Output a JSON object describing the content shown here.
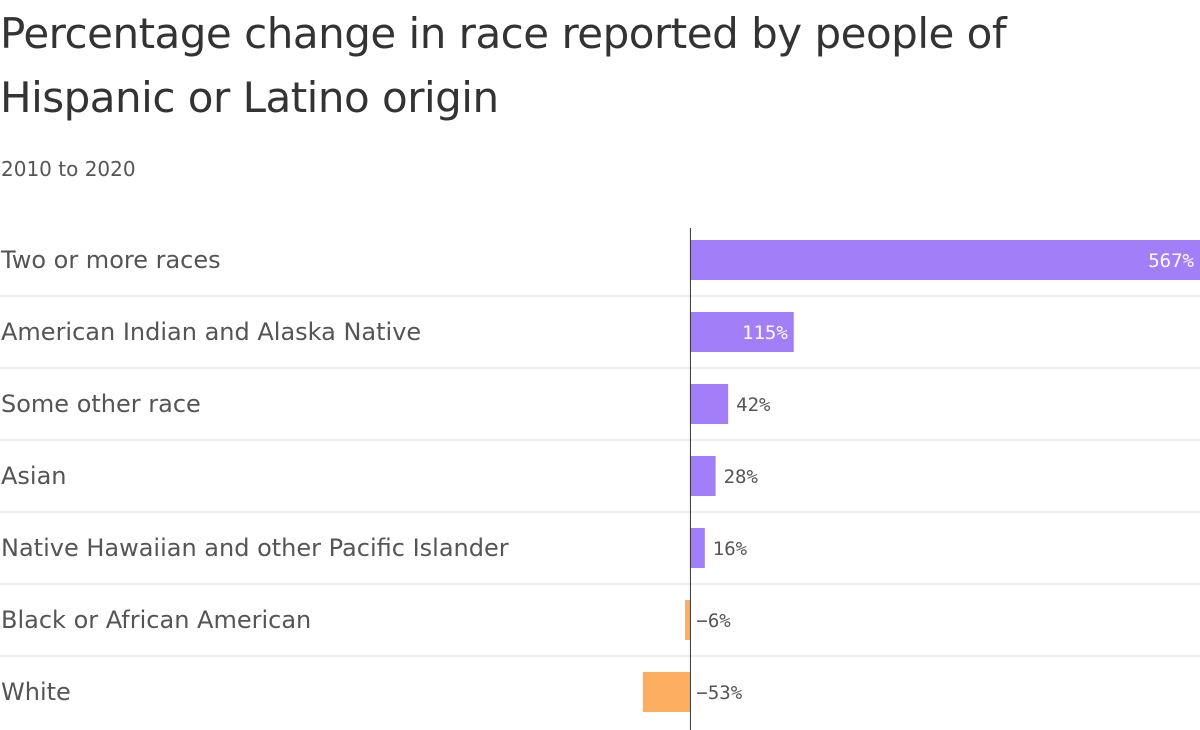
{
  "chart_data": {
    "type": "bar",
    "orientation": "horizontal",
    "title": "Percentage change in race reported by people of Hispanic or Latino origin",
    "subtitle": "2010 to 2020",
    "categories": [
      "Two or more races",
      "American Indian and Alaska Native",
      "Some other race",
      "Asian",
      "Native Hawaiian and other Pacific Islander",
      "Black or African American",
      "White"
    ],
    "values": [
      567,
      115,
      42,
      28,
      16,
      -6,
      -53
    ],
    "value_labels": [
      "567%",
      "115%",
      "42%",
      "28%",
      "16%",
      "−6%",
      "−53%"
    ],
    "unit": "%",
    "xlim": [
      -65,
      567
    ],
    "grid": false,
    "legend": "none",
    "colors": {
      "positive": "#a27ff9",
      "negative": "#fdae61",
      "label_inside": "#ffffff",
      "label_outside": "#555555",
      "axis": "#333333",
      "separator": "#dddddd"
    }
  }
}
